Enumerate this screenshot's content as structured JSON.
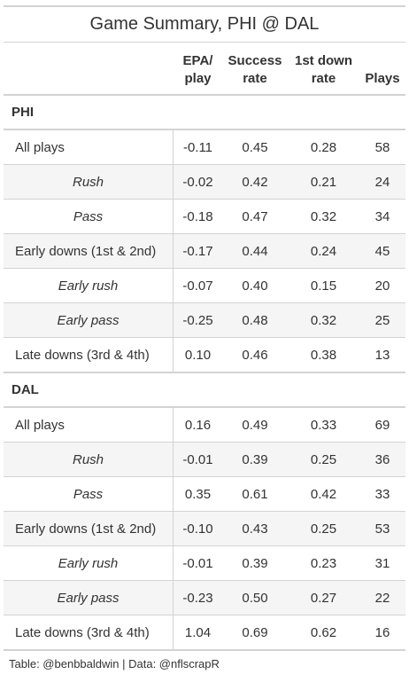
{
  "title": "Game Summary, PHI @ DAL",
  "columns": {
    "epa": [
      "EPA/",
      "play"
    ],
    "success": [
      "Success",
      "rate"
    ],
    "first_down": [
      "1st down",
      "rate"
    ],
    "plays": "Plays"
  },
  "groups": [
    {
      "name": "PHI",
      "rows": [
        {
          "label": "All plays",
          "style": "main",
          "epa": "-0.11",
          "success": "0.45",
          "first_down": "0.28",
          "plays": "58"
        },
        {
          "label": "Rush",
          "style": "sub",
          "epa": "-0.02",
          "success": "0.42",
          "first_down": "0.21",
          "plays": "24"
        },
        {
          "label": "Pass",
          "style": "sub",
          "epa": "-0.18",
          "success": "0.47",
          "first_down": "0.32",
          "plays": "34"
        },
        {
          "label": "Early downs (1st & 2nd)",
          "style": "main",
          "epa": "-0.17",
          "success": "0.44",
          "first_down": "0.24",
          "plays": "45"
        },
        {
          "label": "Early rush",
          "style": "sub",
          "epa": "-0.07",
          "success": "0.40",
          "first_down": "0.15",
          "plays": "20"
        },
        {
          "label": "Early pass",
          "style": "sub",
          "epa": "-0.25",
          "success": "0.48",
          "first_down": "0.32",
          "plays": "25"
        },
        {
          "label": "Late downs (3rd & 4th)",
          "style": "main",
          "epa": "0.10",
          "success": "0.46",
          "first_down": "0.38",
          "plays": "13"
        }
      ]
    },
    {
      "name": "DAL",
      "rows": [
        {
          "label": "All plays",
          "style": "main",
          "epa": "0.16",
          "success": "0.49",
          "first_down": "0.33",
          "plays": "69"
        },
        {
          "label": "Rush",
          "style": "sub",
          "epa": "-0.01",
          "success": "0.39",
          "first_down": "0.25",
          "plays": "36"
        },
        {
          "label": "Pass",
          "style": "sub",
          "epa": "0.35",
          "success": "0.61",
          "first_down": "0.42",
          "plays": "33"
        },
        {
          "label": "Early downs (1st & 2nd)",
          "style": "main",
          "epa": "-0.10",
          "success": "0.43",
          "first_down": "0.25",
          "plays": "53"
        },
        {
          "label": "Early rush",
          "style": "sub",
          "epa": "-0.01",
          "success": "0.39",
          "first_down": "0.23",
          "plays": "31"
        },
        {
          "label": "Early pass",
          "style": "sub",
          "epa": "-0.23",
          "success": "0.50",
          "first_down": "0.27",
          "plays": "22"
        },
        {
          "label": "Late downs (3rd & 4th)",
          "style": "main",
          "epa": "1.04",
          "success": "0.69",
          "first_down": "0.62",
          "plays": "16"
        }
      ]
    }
  ],
  "footer": "Table: @benbbaldwin | Data: @nflscrapR"
}
